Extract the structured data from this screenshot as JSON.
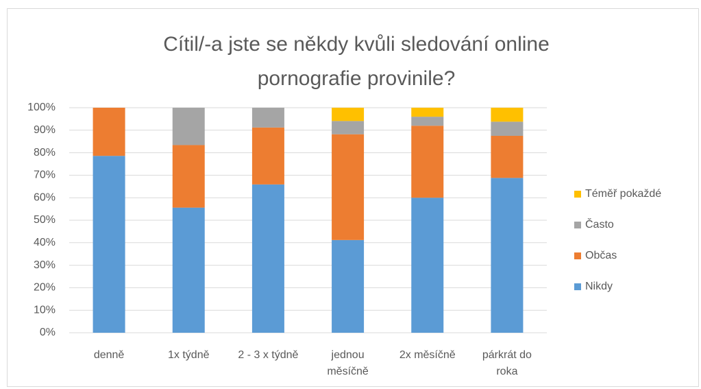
{
  "chart_data": {
    "type": "stacked_bar",
    "title": "Cítil/-a jste se někdy kvůli sledování online pornografie provinile?",
    "categories": [
      "denně",
      "1x týdně",
      "2 - 3 x týdně",
      "jednou měsíčně",
      "2x měsíčně",
      "párkrát do roka"
    ],
    "series": [
      {
        "name": "Nikdy",
        "color": "#5b9bd5",
        "values": [
          78.6,
          55.6,
          65.9,
          41.2,
          60.0,
          68.8
        ]
      },
      {
        "name": "Občas",
        "color": "#ed7d31",
        "values": [
          21.4,
          27.8,
          25.3,
          47.0,
          32.0,
          18.7
        ]
      },
      {
        "name": "Často",
        "color": "#a5a5a5",
        "values": [
          0,
          16.6,
          8.8,
          5.9,
          4.0,
          6.3
        ]
      },
      {
        "name": "Téměř pokaždé",
        "color": "#ffc000",
        "values": [
          0,
          0,
          0,
          5.9,
          4.0,
          6.2
        ]
      }
    ],
    "ylim": [
      0,
      100
    ],
    "yticks": [
      {
        "value": 0,
        "label": "0%"
      },
      {
        "value": 10,
        "label": "10%"
      },
      {
        "value": 20,
        "label": "20%"
      },
      {
        "value": 30,
        "label": "30%"
      },
      {
        "value": 40,
        "label": "40%"
      },
      {
        "value": 50,
        "label": "50%"
      },
      {
        "value": 60,
        "label": "60%"
      },
      {
        "value": 70,
        "label": "70%"
      },
      {
        "value": 80,
        "label": "80%"
      },
      {
        "value": 90,
        "label": "90%"
      },
      {
        "value": 100,
        "label": "100%"
      }
    ],
    "grid": true,
    "legend": "right"
  }
}
